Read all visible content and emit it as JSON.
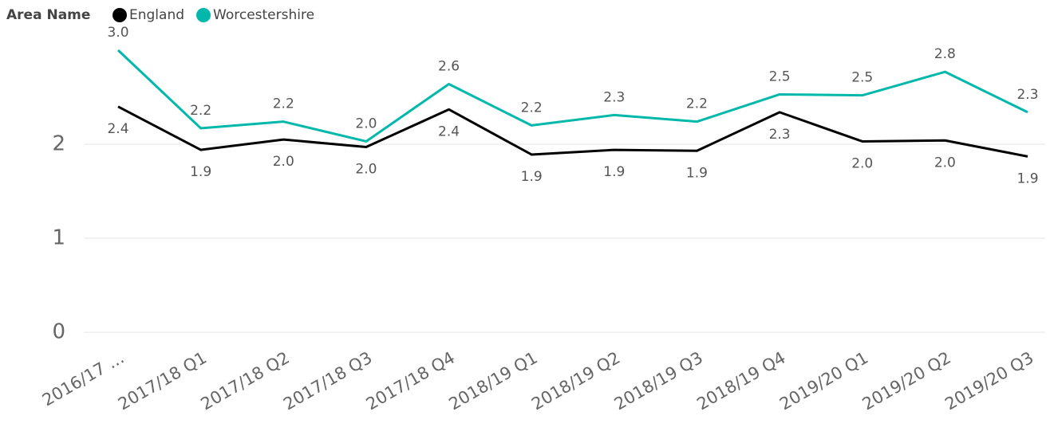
{
  "chart_data": {
    "type": "line",
    "legend_title": "Area Name",
    "categories": [
      "2016/17 ...",
      "2017/18 Q1",
      "2017/18 Q2",
      "2017/18 Q3",
      "2017/18 Q4",
      "2018/19 Q1",
      "2018/19 Q2",
      "2018/19 Q3",
      "2018/19 Q4",
      "2019/20 Q1",
      "2019/20 Q2",
      "2019/20 Q3"
    ],
    "series": [
      {
        "name": "England",
        "color": "#000000",
        "values": [
          2.4,
          1.94,
          2.05,
          1.97,
          2.37,
          1.89,
          1.94,
          1.93,
          2.34,
          2.03,
          2.04,
          1.87
        ],
        "value_labels": [
          "2.4",
          "1.9",
          "2.0",
          "2.0",
          "2.4",
          "1.9",
          "1.9",
          "1.9",
          "2.3",
          "2.0",
          "2.0",
          "1.9"
        ]
      },
      {
        "name": "Worcestershire",
        "color": "#01b8aa",
        "values": [
          3.0,
          2.17,
          2.24,
          2.03,
          2.64,
          2.2,
          2.31,
          2.24,
          2.53,
          2.52,
          2.77,
          2.34
        ],
        "value_labels": [
          "3.0",
          "2.2",
          "2.2",
          "2.0",
          "2.6",
          "2.2",
          "2.3",
          "2.2",
          "2.5",
          "2.5",
          "2.8",
          "2.3"
        ]
      }
    ],
    "ylim": [
      0,
      3.1
    ],
    "yticks": [
      0,
      1,
      2
    ],
    "grid": true,
    "legend": "top-left"
  }
}
